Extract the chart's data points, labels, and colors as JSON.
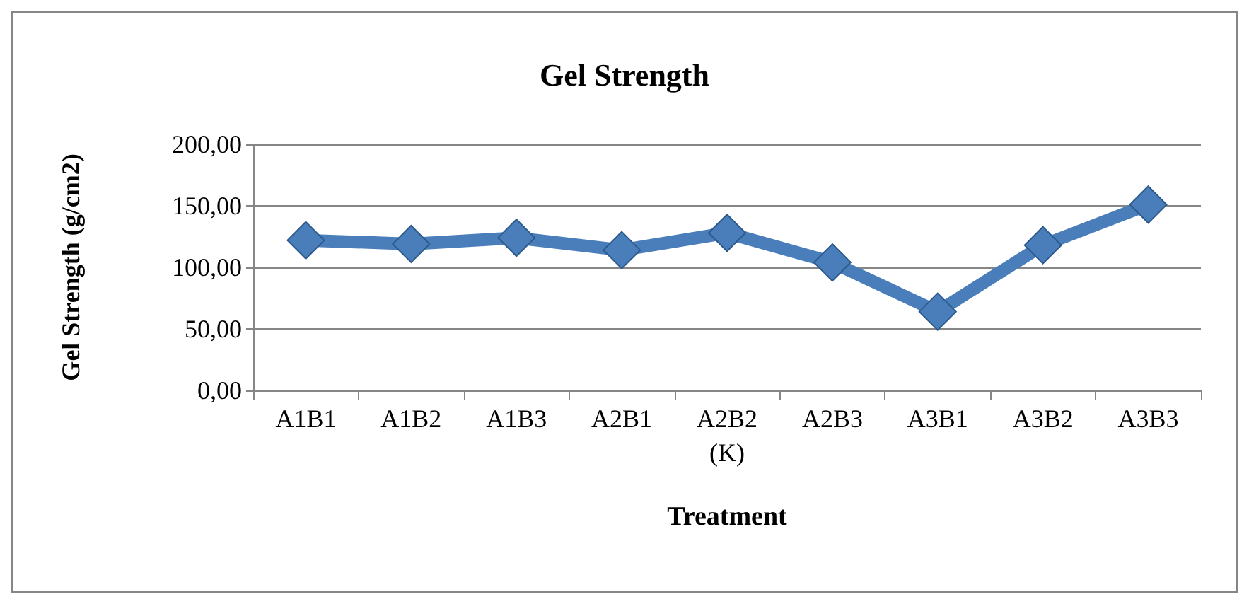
{
  "chart_data": {
    "type": "line",
    "title": "Gel Strength",
    "xlabel": "Treatment",
    "ylabel": "Gel Strength (g/cm2)",
    "categories": [
      "A1B1",
      "A1B2",
      "A1B3",
      "A2B1",
      "A2B2\n(K)",
      "A2B3",
      "A3B1",
      "A3B2",
      "A3B3"
    ],
    "series": [
      {
        "color": "#4a7ebb",
        "values": [
          122,
          119,
          124,
          114,
          128,
          104,
          64,
          118,
          151
        ]
      }
    ],
    "ylim": [
      0,
      200
    ],
    "yticks": [
      {
        "value": 0,
        "label": "0,00"
      },
      {
        "value": 50,
        "label": "50,00"
      },
      {
        "value": 100,
        "label": "100,00"
      },
      {
        "value": 150,
        "label": "150,00"
      },
      {
        "value": 200,
        "label": "200,00"
      }
    ],
    "grid": "y",
    "marker": "diamond",
    "line_style": "solid"
  }
}
